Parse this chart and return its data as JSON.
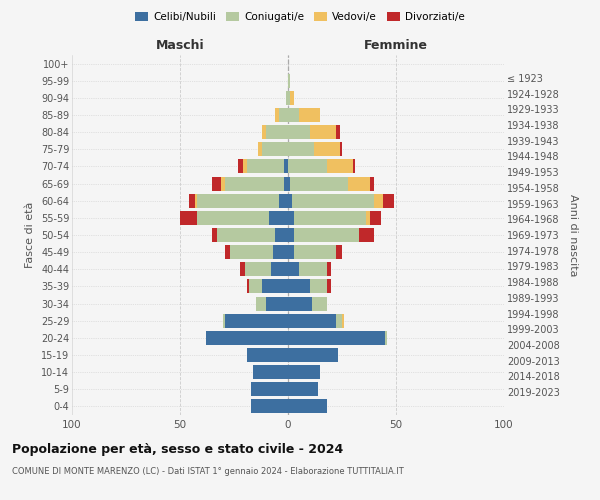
{
  "age_groups": [
    "0-4",
    "5-9",
    "10-14",
    "15-19",
    "20-24",
    "25-29",
    "30-34",
    "35-39",
    "40-44",
    "45-49",
    "50-54",
    "55-59",
    "60-64",
    "65-69",
    "70-74",
    "75-79",
    "80-84",
    "85-89",
    "90-94",
    "95-99",
    "100+"
  ],
  "birth_years": [
    "2019-2023",
    "2014-2018",
    "2009-2013",
    "2004-2008",
    "1999-2003",
    "1994-1998",
    "1989-1993",
    "1984-1988",
    "1979-1983",
    "1974-1978",
    "1969-1973",
    "1964-1968",
    "1959-1963",
    "1954-1958",
    "1949-1953",
    "1944-1948",
    "1939-1943",
    "1934-1938",
    "1929-1933",
    "1924-1928",
    "≤ 1923"
  ],
  "maschi": {
    "celibi": [
      17,
      17,
      16,
      19,
      38,
      29,
      10,
      12,
      8,
      7,
      6,
      9,
      4,
      2,
      2,
      0,
      0,
      0,
      0,
      0,
      0
    ],
    "coniugati": [
      0,
      0,
      0,
      0,
      0,
      1,
      5,
      6,
      12,
      20,
      27,
      33,
      38,
      27,
      17,
      12,
      10,
      4,
      1,
      0,
      0
    ],
    "vedovi": [
      0,
      0,
      0,
      0,
      0,
      0,
      0,
      0,
      0,
      0,
      0,
      0,
      1,
      2,
      2,
      2,
      2,
      2,
      0,
      0,
      0
    ],
    "divorziati": [
      0,
      0,
      0,
      0,
      0,
      0,
      0,
      1,
      2,
      2,
      2,
      8,
      3,
      4,
      2,
      0,
      0,
      0,
      0,
      0,
      0
    ]
  },
  "femmine": {
    "nubili": [
      18,
      14,
      15,
      23,
      45,
      22,
      11,
      10,
      5,
      3,
      3,
      3,
      2,
      1,
      0,
      0,
      0,
      0,
      0,
      0,
      0
    ],
    "coniugate": [
      0,
      0,
      0,
      0,
      1,
      3,
      7,
      8,
      13,
      19,
      30,
      33,
      38,
      27,
      18,
      12,
      10,
      5,
      1,
      1,
      0
    ],
    "vedove": [
      0,
      0,
      0,
      0,
      0,
      1,
      0,
      0,
      0,
      0,
      0,
      2,
      4,
      10,
      12,
      12,
      12,
      10,
      2,
      0,
      0
    ],
    "divorziate": [
      0,
      0,
      0,
      0,
      0,
      0,
      0,
      2,
      2,
      3,
      7,
      5,
      5,
      2,
      1,
      1,
      2,
      0,
      0,
      0,
      0
    ]
  },
  "colors": {
    "celibi": "#3d6fa0",
    "coniugati": "#b5c9a0",
    "vedovi": "#f0c060",
    "divorziati": "#c0282a"
  },
  "xlim": 100,
  "title": "Popolazione per età, sesso e stato civile - 2024",
  "subtitle": "COMUNE DI MONTE MARENZO (LC) - Dati ISTAT 1° gennaio 2024 - Elaborazione TUTTITALIA.IT",
  "ylabel_left": "Fasce di età",
  "ylabel_right": "Anni di nascita",
  "xlabel_left": "Maschi",
  "xlabel_right": "Femmine",
  "bg_color": "#f5f5f5",
  "grid_color": "#cccccc"
}
